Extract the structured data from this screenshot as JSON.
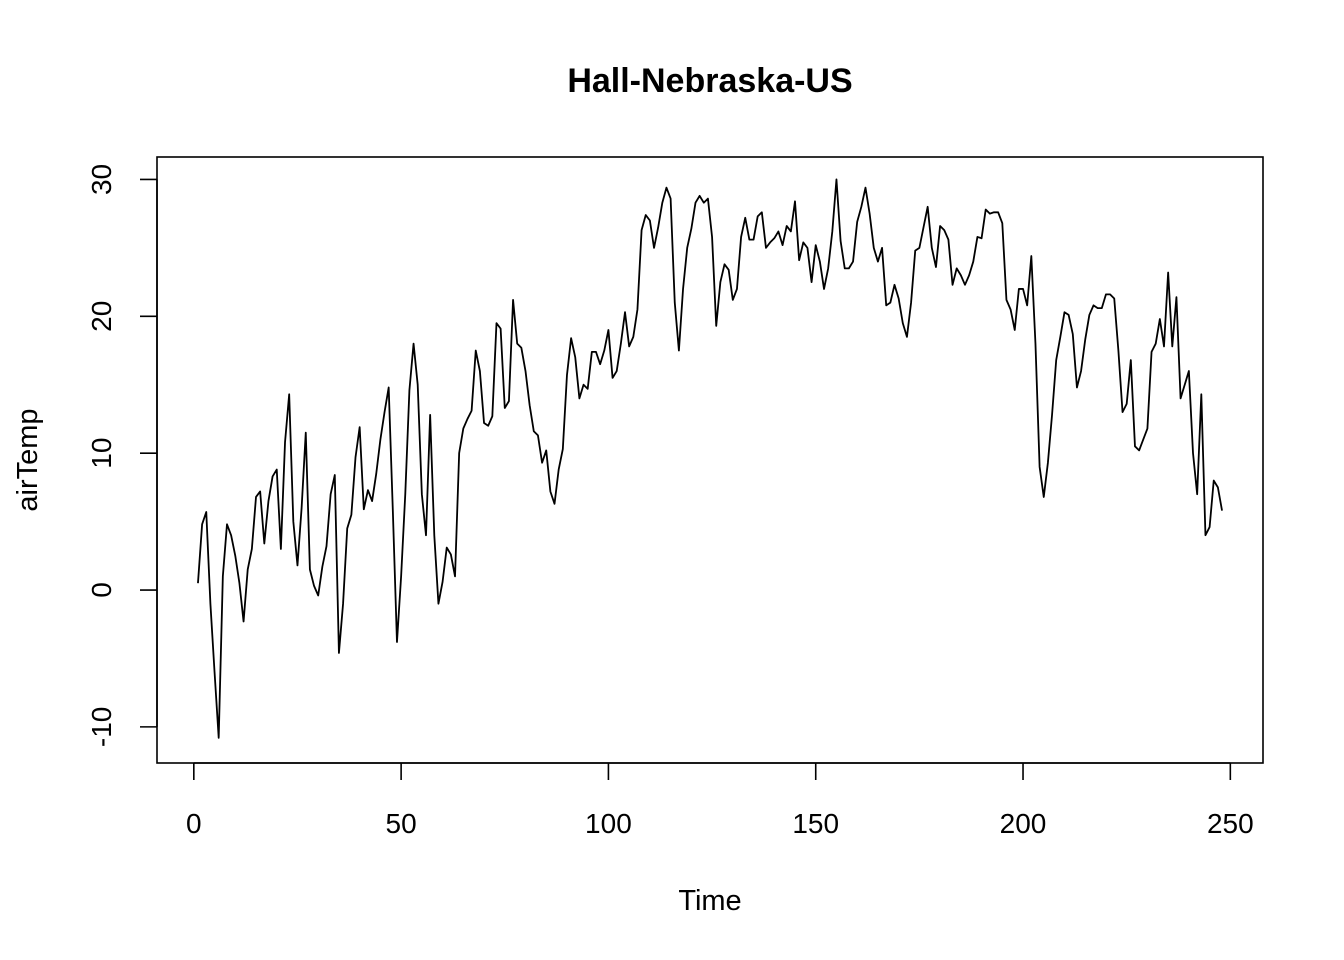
{
  "chart_data": {
    "type": "line",
    "title": "Hall-Nebraska-US",
    "xlabel": "Time",
    "ylabel": "airTemp",
    "xlim": [
      1,
      248
    ],
    "ylim": [
      -11,
      30
    ],
    "x_ticks": [
      0,
      50,
      100,
      150,
      200,
      250
    ],
    "y_ticks": [
      -10,
      0,
      10,
      20,
      30
    ],
    "x_tick_labels": [
      "0",
      "50",
      "100",
      "150",
      "200",
      "250"
    ],
    "y_tick_labels": [
      "-10",
      "0",
      "10",
      "20",
      "30"
    ],
    "grid": false,
    "legend": "none",
    "series": [
      {
        "x_start": 1,
        "x_step": 1,
        "values": [
          0.5,
          4.8,
          5.7,
          -1.0,
          -6.0,
          -10.8,
          1.0,
          4.8,
          4.0,
          2.5,
          0.5,
          -2.3,
          1.5,
          3.0,
          6.8,
          7.2,
          3.4,
          6.5,
          8.3,
          8.8,
          3.0,
          10.8,
          14.3,
          5.0,
          1.8,
          6.0,
          11.5,
          1.5,
          0.3,
          -0.4,
          1.7,
          3.2,
          7.0,
          8.4,
          -4.6,
          -1.0,
          4.5,
          5.5,
          9.7,
          11.9,
          5.9,
          7.3,
          6.5,
          8.5,
          11.0,
          13.0,
          14.8,
          5.8,
          -3.8,
          1.0,
          7.0,
          14.6,
          18.0,
          15.0,
          7.0,
          4.0,
          12.8,
          4.0,
          -1.0,
          0.6,
          3.1,
          2.6,
          1.0,
          10.0,
          11.8,
          12.5,
          13.1,
          17.5,
          16.0,
          12.2,
          12.0,
          12.7,
          19.5,
          19.1,
          13.3,
          13.8,
          21.2,
          18.0,
          17.7,
          16.0,
          13.5,
          11.6,
          11.3,
          9.3,
          10.2,
          7.2,
          6.3,
          8.8,
          10.3,
          15.7,
          18.4,
          17.0,
          14.0,
          15.0,
          14.7,
          17.4,
          17.4,
          16.5,
          17.5,
          19.0,
          15.5,
          16.0,
          18.0,
          20.3,
          17.8,
          18.5,
          20.5,
          26.3,
          27.4,
          27.0,
          25.0,
          26.5,
          28.3,
          29.4,
          28.6,
          21.0,
          17.5,
          22.0,
          25.0,
          26.4,
          28.3,
          28.8,
          28.3,
          28.6,
          25.8,
          19.3,
          22.5,
          23.8,
          23.4,
          21.2,
          22.0,
          25.8,
          27.2,
          25.6,
          25.6,
          27.3,
          27.6,
          25.0,
          25.4,
          25.7,
          26.2,
          25.2,
          26.6,
          26.2,
          28.4,
          24.1,
          25.4,
          25.0,
          22.5,
          25.2,
          24.0,
          22.0,
          23.5,
          26.2,
          30.0,
          25.5,
          23.5,
          23.5,
          24.0,
          26.9,
          28.0,
          29.4,
          27.5,
          25.0,
          24.0,
          25.0,
          20.8,
          21.0,
          22.3,
          21.3,
          19.5,
          18.5,
          21.0,
          24.8,
          25.0,
          26.5,
          28.0,
          25.0,
          23.6,
          26.6,
          26.3,
          25.6,
          22.3,
          23.5,
          23.0,
          22.3,
          23.0,
          24.0,
          25.8,
          25.7,
          27.8,
          27.5,
          27.6,
          27.6,
          26.8,
          21.2,
          20.5,
          19.0,
          22.0,
          22.0,
          20.8,
          24.4,
          18.0,
          9.0,
          6.8,
          9.3,
          12.8,
          16.8,
          18.5,
          20.3,
          20.1,
          18.7,
          14.8,
          16.0,
          18.3,
          20.1,
          20.8,
          20.6,
          20.6,
          21.6,
          21.6,
          21.3,
          17.5,
          13.0,
          13.6,
          16.8,
          10.5,
          10.2,
          11.0,
          11.8,
          17.4,
          18.0,
          19.8,
          17.8,
          23.2,
          17.8,
          21.4,
          14.0,
          15.0,
          16.0,
          10.0,
          7.0,
          14.3,
          4.0,
          4.6,
          8.0,
          7.5,
          5.8
        ]
      }
    ]
  }
}
